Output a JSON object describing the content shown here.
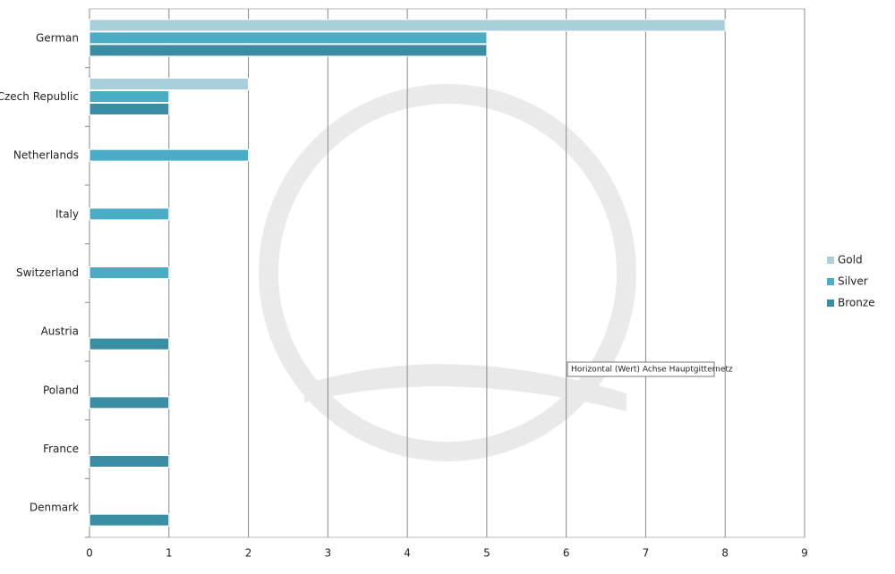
{
  "chart_data": {
    "type": "bar",
    "orientation": "horizontal",
    "categories": [
      "German",
      "Czech Republic",
      "Netherlands",
      "Italy",
      "Switzerland",
      "Austria",
      "Poland",
      "France",
      "Denmark"
    ],
    "series": [
      {
        "name": "Gold",
        "color": "#a9cfdc",
        "values": [
          8,
          2,
          0,
          0,
          0,
          0,
          0,
          0,
          0
        ]
      },
      {
        "name": "Silver",
        "color": "#4bacc6",
        "values": [
          5,
          1,
          2,
          1,
          1,
          0,
          0,
          0,
          0
        ]
      },
      {
        "name": "Bronze",
        "color": "#3a8ea3",
        "values": [
          5,
          1,
          0,
          0,
          0,
          1,
          1,
          1,
          1
        ]
      }
    ],
    "xlim": [
      0,
      9
    ],
    "xticks": [
      0,
      1,
      2,
      3,
      4,
      5,
      6,
      7,
      8,
      9
    ],
    "grid": true,
    "legend": "right"
  },
  "tooltip": "Horizontal (Wert) Achse Hauptgitternetz"
}
